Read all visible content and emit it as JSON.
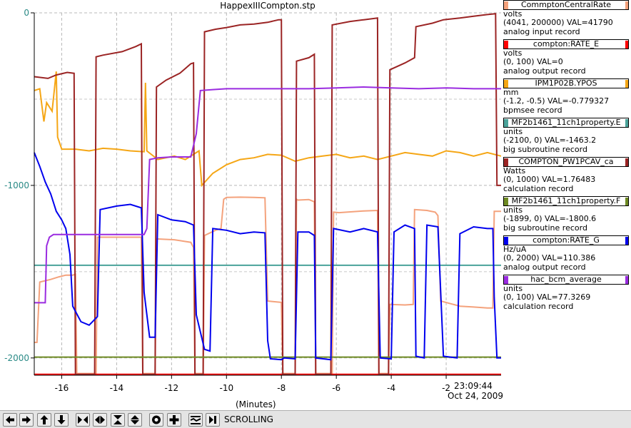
{
  "chart_data": {
    "type": "line",
    "title": "HappexIIICompton.stp",
    "xlabel": "(Minutes)",
    "xlim": [
      -17,
      0
    ],
    "ylim": [
      -2100,
      0
    ],
    "xticks": [
      -16,
      -14,
      -12,
      -10,
      -8,
      -6,
      -4,
      -2
    ],
    "xtick_labels": [
      "-16",
      "-14",
      "-12",
      "-10",
      "-8",
      "-6",
      "-4",
      "-2"
    ],
    "yticks": [
      0,
      -1000,
      -2000
    ],
    "ytick_labels": [
      "0",
      "-1000",
      "-2000"
    ],
    "grid": true,
    "legend_position": "right",
    "timestamp": {
      "time": "23:09:44",
      "date": "Oct 24, 2009"
    },
    "series": [
      {
        "name": "CommptonCentralRate",
        "color": "#f4a27c",
        "points": [
          [
            -17,
            -1910
          ],
          [
            -16.9,
            -1910
          ],
          [
            -16.88,
            -1840
          ],
          [
            -16.8,
            -1560
          ],
          [
            -16.4,
            -1545
          ],
          [
            -16.1,
            -1530
          ],
          [
            -15.85,
            -1520
          ],
          [
            -15.6,
            -1520
          ],
          [
            -15.5,
            -1515
          ],
          [
            -15.45,
            -2090
          ],
          [
            -14.75,
            -2090
          ],
          [
            -14.7,
            -1300
          ],
          [
            -13.9,
            -1300
          ],
          [
            -13.1,
            -1300
          ],
          [
            -13.05,
            -2090
          ],
          [
            -12.6,
            -2090
          ],
          [
            -12.55,
            -1310
          ],
          [
            -11.9,
            -1315
          ],
          [
            -11.3,
            -1330
          ],
          [
            -11.2,
            -1360
          ],
          [
            -11.15,
            -2090
          ],
          [
            -10.85,
            -2090
          ],
          [
            -10.8,
            -1290
          ],
          [
            -10.4,
            -1260
          ],
          [
            -10.2,
            -1250
          ],
          [
            -10.1,
            -1080
          ],
          [
            -10,
            -1070
          ],
          [
            -9.5,
            -1068
          ],
          [
            -9.0,
            -1070
          ],
          [
            -8.6,
            -1072
          ],
          [
            -8.5,
            -1670
          ],
          [
            -8.0,
            -1678
          ],
          [
            -7.95,
            -2090
          ],
          [
            -7.5,
            -2090
          ],
          [
            -7.45,
            -1080
          ],
          [
            -7.4,
            -1085
          ],
          [
            -7.0,
            -1082
          ],
          [
            -6.8,
            -1095
          ],
          [
            -6.75,
            -2090
          ],
          [
            -6.15,
            -2090
          ],
          [
            -6.1,
            -1155
          ],
          [
            -5.9,
            -1158
          ],
          [
            -5.0,
            -1148
          ],
          [
            -4.5,
            -1145
          ],
          [
            -4.45,
            -2090
          ],
          [
            -4.1,
            -2090
          ],
          [
            -4.05,
            -1690
          ],
          [
            -3.5,
            -1693
          ],
          [
            -3.2,
            -1690
          ],
          [
            -3.15,
            -1140
          ],
          [
            -2.7,
            -1145
          ],
          [
            -2.4,
            -1155
          ],
          [
            -2.3,
            -1175
          ],
          [
            -2.2,
            -1670
          ],
          [
            -1.5,
            -1700
          ],
          [
            -1.0,
            -1705
          ],
          [
            -0.5,
            -1710
          ],
          [
            -0.3,
            -1710
          ],
          [
            -0.25,
            -1150
          ],
          [
            0,
            -1150
          ]
        ]
      },
      {
        "name": "compton:RATE_E",
        "color": "#ff0000",
        "points": [
          [
            -17,
            -2095
          ],
          [
            0,
            -2095
          ]
        ]
      },
      {
        "name": "IPM1P02B.YPOS",
        "color": "#f5a615",
        "points": [
          [
            -17,
            -450
          ],
          [
            -16.8,
            -440
          ],
          [
            -16.65,
            -630
          ],
          [
            -16.55,
            -520
          ],
          [
            -16.35,
            -570
          ],
          [
            -16.2,
            -340
          ],
          [
            -16.15,
            -720
          ],
          [
            -16.0,
            -790
          ],
          [
            -15.5,
            -790
          ],
          [
            -15.0,
            -800
          ],
          [
            -14.5,
            -785
          ],
          [
            -14.0,
            -790
          ],
          [
            -13.5,
            -800
          ],
          [
            -13.0,
            -805
          ],
          [
            -12.95,
            -405
          ],
          [
            -12.9,
            -800
          ],
          [
            -12.5,
            -850
          ],
          [
            -11.9,
            -830
          ],
          [
            -11.5,
            -850
          ],
          [
            -11.0,
            -800
          ],
          [
            -10.9,
            -1000
          ],
          [
            -10.5,
            -930
          ],
          [
            -10.0,
            -880
          ],
          [
            -9.5,
            -850
          ],
          [
            -9.0,
            -840
          ],
          [
            -8.5,
            -820
          ],
          [
            -8.0,
            -825
          ],
          [
            -7.5,
            -860
          ],
          [
            -7.0,
            -840
          ],
          [
            -6.5,
            -830
          ],
          [
            -6.0,
            -820
          ],
          [
            -5.5,
            -840
          ],
          [
            -5.0,
            -830
          ],
          [
            -4.5,
            -850
          ],
          [
            -4.0,
            -830
          ],
          [
            -3.5,
            -810
          ],
          [
            -3.0,
            -820
          ],
          [
            -2.5,
            -830
          ],
          [
            -2.0,
            -800
          ],
          [
            -1.5,
            -810
          ],
          [
            -1.0,
            -830
          ],
          [
            -0.5,
            -810
          ],
          [
            0,
            -830
          ]
        ]
      },
      {
        "name": "MF2b1461_11ch1property.E",
        "color": "#4aa39a",
        "points": [
          [
            -17,
            -1463
          ],
          [
            0,
            -1463
          ]
        ]
      },
      {
        "name": "COMPTON_PW1PCAV_ca",
        "color": "#9b2424",
        "points": [
          [
            -17,
            -370
          ],
          [
            -16.5,
            -380
          ],
          [
            -16.2,
            -360
          ],
          [
            -15.8,
            -345
          ],
          [
            -15.55,
            -350
          ],
          [
            -15.5,
            -2095
          ],
          [
            -14.8,
            -2095
          ],
          [
            -14.75,
            -255
          ],
          [
            -14.5,
            -245
          ],
          [
            -13.8,
            -225
          ],
          [
            -13.3,
            -195
          ],
          [
            -13.1,
            -180
          ],
          [
            -13.05,
            -2095
          ],
          [
            -12.6,
            -2095
          ],
          [
            -12.55,
            -430
          ],
          [
            -12.2,
            -390
          ],
          [
            -11.7,
            -350
          ],
          [
            -11.3,
            -295
          ],
          [
            -11.2,
            -290
          ],
          [
            -11.15,
            -2095
          ],
          [
            -10.85,
            -2095
          ],
          [
            -10.8,
            -110
          ],
          [
            -10.4,
            -95
          ],
          [
            -10.0,
            -85
          ],
          [
            -9.5,
            -70
          ],
          [
            -9.0,
            -65
          ],
          [
            -8.5,
            -55
          ],
          [
            -8.1,
            -40
          ],
          [
            -8.0,
            -40
          ],
          [
            -7.95,
            -2095
          ],
          [
            -7.5,
            -2095
          ],
          [
            -7.45,
            -280
          ],
          [
            -7.0,
            -260
          ],
          [
            -6.8,
            -240
          ],
          [
            -6.75,
            -2095
          ],
          [
            -6.2,
            -2095
          ],
          [
            -6.15,
            -70
          ],
          [
            -5.5,
            -50
          ],
          [
            -5.0,
            -40
          ],
          [
            -4.5,
            -30
          ],
          [
            -4.45,
            -2095
          ],
          [
            -4.1,
            -2095
          ],
          [
            -4.05,
            -330
          ],
          [
            -3.5,
            -290
          ],
          [
            -3.15,
            -260
          ],
          [
            -3.1,
            -80
          ],
          [
            -2.5,
            -60
          ],
          [
            -2.1,
            -40
          ],
          [
            -1.5,
            -30
          ],
          [
            -1.0,
            -20
          ],
          [
            -0.5,
            -10
          ],
          [
            -0.2,
            -5
          ],
          [
            -0.15,
            -1000
          ],
          [
            0,
            -1000
          ]
        ]
      },
      {
        "name": "MF2b1461_11ch1property.F",
        "color": "#6e8a23",
        "points": [
          [
            -17,
            -1995
          ],
          [
            0,
            -1995
          ]
        ]
      },
      {
        "name": "compton:RATE_G",
        "color": "#0000ee",
        "points": [
          [
            -17,
            -810
          ],
          [
            -16.8,
            -890
          ],
          [
            -16.6,
            -980
          ],
          [
            -16.4,
            -1050
          ],
          [
            -16.2,
            -1150
          ],
          [
            -16.0,
            -1200
          ],
          [
            -15.85,
            -1250
          ],
          [
            -15.7,
            -1400
          ],
          [
            -15.6,
            -1700
          ],
          [
            -15.5,
            -1730
          ],
          [
            -15.3,
            -1790
          ],
          [
            -15.0,
            -1810
          ],
          [
            -14.7,
            -1760
          ],
          [
            -14.6,
            -1140
          ],
          [
            -14.0,
            -1120
          ],
          [
            -13.5,
            -1110
          ],
          [
            -13.1,
            -1130
          ],
          [
            -13.0,
            -1620
          ],
          [
            -12.8,
            -1880
          ],
          [
            -12.6,
            -1880
          ],
          [
            -12.5,
            -1170
          ],
          [
            -12.0,
            -1200
          ],
          [
            -11.5,
            -1210
          ],
          [
            -11.2,
            -1230
          ],
          [
            -11.1,
            -1750
          ],
          [
            -10.8,
            -1950
          ],
          [
            -10.6,
            -1960
          ],
          [
            -10.5,
            -1250
          ],
          [
            -10.0,
            -1260
          ],
          [
            -9.5,
            -1280
          ],
          [
            -9.0,
            -1270
          ],
          [
            -8.6,
            -1275
          ],
          [
            -8.5,
            -1900
          ],
          [
            -8.4,
            -2005
          ],
          [
            -8.0,
            -2010
          ],
          [
            -7.9,
            -2000
          ],
          [
            -7.5,
            -2005
          ],
          [
            -7.4,
            -1270
          ],
          [
            -7.0,
            -1270
          ],
          [
            -6.8,
            -1290
          ],
          [
            -6.75,
            -2000
          ],
          [
            -6.2,
            -2010
          ],
          [
            -6.1,
            -1250
          ],
          [
            -5.5,
            -1270
          ],
          [
            -5.0,
            -1250
          ],
          [
            -4.5,
            -1270
          ],
          [
            -4.4,
            -2000
          ],
          [
            -4.0,
            -2005
          ],
          [
            -3.9,
            -1270
          ],
          [
            -3.5,
            -1230
          ],
          [
            -3.15,
            -1250
          ],
          [
            -3.1,
            -1990
          ],
          [
            -2.8,
            -2000
          ],
          [
            -2.7,
            -1230
          ],
          [
            -2.3,
            -1240
          ],
          [
            -2.1,
            -1990
          ],
          [
            -1.6,
            -2000
          ],
          [
            -1.5,
            -1280
          ],
          [
            -1.0,
            -1240
          ],
          [
            -0.5,
            -1250
          ],
          [
            -0.3,
            -1250
          ],
          [
            -0.25,
            -1650
          ],
          [
            -0.15,
            -2000
          ],
          [
            0,
            -2000
          ]
        ]
      },
      {
        "name": "hac_bcm_average",
        "color": "#9a2be0",
        "points": [
          [
            -17,
            -1680
          ],
          [
            -16.6,
            -1680
          ],
          [
            -16.55,
            -1350
          ],
          [
            -16.45,
            -1300
          ],
          [
            -16.3,
            -1285
          ],
          [
            -15.5,
            -1285
          ],
          [
            -13.0,
            -1285
          ],
          [
            -12.9,
            -1250
          ],
          [
            -12.8,
            -850
          ],
          [
            -12.5,
            -840
          ],
          [
            -12.0,
            -835
          ],
          [
            -11.3,
            -835
          ],
          [
            -11.1,
            -700
          ],
          [
            -10.95,
            -450
          ],
          [
            -10.5,
            -445
          ],
          [
            -10.0,
            -440
          ],
          [
            -9.0,
            -440
          ],
          [
            -8.0,
            -440
          ],
          [
            -7.0,
            -440
          ],
          [
            -6.0,
            -435
          ],
          [
            -5.0,
            -430
          ],
          [
            -4.0,
            -435
          ],
          [
            -3.0,
            -440
          ],
          [
            -2.0,
            -435
          ],
          [
            -1.0,
            -440
          ],
          [
            0,
            -440
          ]
        ]
      }
    ]
  },
  "legend": [
    {
      "name": "CommptonCentralRate",
      "units": "volts",
      "range": "(4041, 200000)",
      "value": "VAL=41790",
      "record": "analog input record",
      "color": "#f4a27c"
    },
    {
      "name": "compton:RATE_E",
      "units": "volts",
      "range": "(0, 100)",
      "value": "VAL=0",
      "record": "analog output record",
      "color": "#ff0000"
    },
    {
      "name": "IPM1P02B.YPOS",
      "units": "mm",
      "range": "(-1.2, -0.5)",
      "value": "VAL=-0.779327",
      "record": "bpmsee record",
      "color": "#f5a615"
    },
    {
      "name": "MF2b1461_11ch1property.E",
      "units": "units",
      "range": "(-2100, 0)",
      "value": "VAL=-1463.2",
      "record": "big subroutine record",
      "color": "#4aa39a"
    },
    {
      "name": "COMPTON_PW1PCAV_ca",
      "units": "Watts",
      "range": "(0, 1000)",
      "value": "VAL=1.76483",
      "record": "calculation record",
      "color": "#9b2424"
    },
    {
      "name": "MF2b1461_11ch1property.F",
      "units": "units",
      "range": "(-1899, 0)",
      "value": "VAL=-1800.6",
      "record": "big subroutine record",
      "color": "#6e8a23"
    },
    {
      "name": "compton:RATE_G",
      "units": "Hz/uA",
      "range": "(0, 2000)",
      "value": "VAL=110.386",
      "record": "analog output record",
      "color": "#0000ee"
    },
    {
      "name": "hac_bcm_average",
      "units": "units",
      "range": "(0, 100)",
      "value": "VAL=77.3269",
      "record": "calculation record",
      "color": "#9a2be0"
    }
  ],
  "toolbar": {
    "status": "SCROLLING",
    "buttons": [
      {
        "name": "scroll-left-button",
        "icon": "arrow-left-icon"
      },
      {
        "name": "scroll-right-button",
        "icon": "arrow-right-icon"
      },
      {
        "name": "scroll-up-button",
        "icon": "arrow-up-icon"
      },
      {
        "name": "scroll-down-button",
        "icon": "arrow-down-icon"
      },
      {
        "name": "zoom-in-horizontal-button",
        "icon": "compress-horizontal-icon"
      },
      {
        "name": "zoom-out-horizontal-button",
        "icon": "expand-horizontal-icon"
      },
      {
        "name": "zoom-in-vertical-button",
        "icon": "compress-vertical-icon"
      },
      {
        "name": "zoom-out-vertical-button",
        "icon": "expand-vertical-icon"
      },
      {
        "name": "autoscale-button",
        "icon": "circle-target-icon"
      },
      {
        "name": "add-pv-button",
        "icon": "plus-icon"
      },
      {
        "name": "stagger-button",
        "icon": "stagger-icon"
      },
      {
        "name": "toggle-scrolling-button",
        "icon": "scroll-toggle-icon"
      }
    ]
  }
}
